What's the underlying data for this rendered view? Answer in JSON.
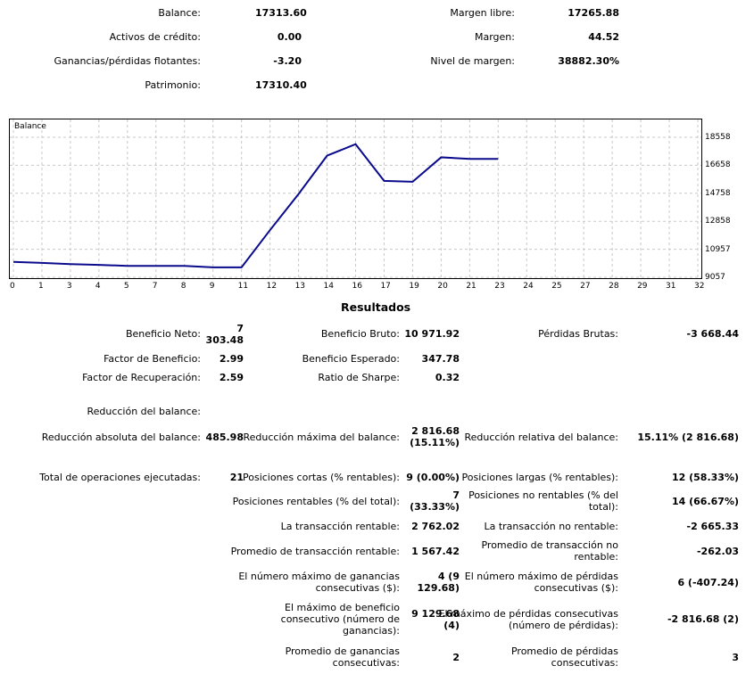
{
  "account": {
    "balance_label": "Balance:",
    "balance_value": "17313.60",
    "credit_label": "Activos de crédito:",
    "credit_value": "0.00",
    "floating_label": "Ganancias/pérdidas flotantes:",
    "floating_value": "-3.20",
    "equity_label": "Patrimonio:",
    "equity_value": "17310.40",
    "free_margin_label": "Margen libre:",
    "free_margin_value": "17265.88",
    "margin_label": "Margen:",
    "margin_value": "44.52",
    "margin_level_label": "Nivel de margen:",
    "margin_level_value": "38882.30%"
  },
  "chart_data": {
    "type": "line",
    "title": "Balance",
    "x_ticks": [
      "0",
      "1",
      "3",
      "4",
      "5",
      "7",
      "8",
      "9",
      "11",
      "12",
      "13",
      "14",
      "16",
      "17",
      "19",
      "20",
      "21",
      "23",
      "24",
      "25",
      "27",
      "28",
      "29",
      "31",
      "32"
    ],
    "y_ticks": [
      "18558",
      "16658",
      "14758",
      "12858",
      "10957",
      "9057"
    ],
    "ylim": [
      9057,
      18558
    ],
    "xlim": [
      0,
      24
    ],
    "series": [
      {
        "x": [
          0,
          1,
          2,
          3,
          4,
          5,
          6,
          7,
          8,
          9,
          10,
          11,
          12,
          13,
          14,
          15,
          16,
          17
        ],
        "y": [
          10100,
          10030,
          9950,
          9900,
          9830,
          9830,
          9830,
          9730,
          9730,
          12260,
          14710,
          17310,
          18090,
          15600,
          15540,
          17200,
          17090,
          17090
        ],
        "color": "#0a0a8c"
      }
    ],
    "grid": true
  },
  "results": {
    "title": "Resultados",
    "net_profit_label": "Beneficio Neto:",
    "net_profit_value_1": "7",
    "net_profit_value_2": "303.48",
    "gross_profit_label": "Beneficio Bruto:",
    "gross_profit_value": "10 971.92",
    "gross_loss_label": "Pérdidas Brutas:",
    "gross_loss_value": "-3 668.44",
    "profit_factor_label": "Factor de Beneficio:",
    "profit_factor_value": "2.99",
    "expected_payoff_label": "Beneficio Esperado:",
    "expected_payoff_value": "347.78",
    "recovery_factor_label": "Factor de Recuperación:",
    "recovery_factor_value": "2.59",
    "sharpe_label": "Ratio de Sharpe:",
    "sharpe_value": "0.32",
    "drawdown_label": "Reducción del balance:",
    "abs_drawdown_label": "Reducción absoluta del balance:",
    "abs_drawdown_value": "485.98",
    "max_drawdown_label": "Reducción máxima del balance:",
    "max_drawdown_value_1": "2 816.68",
    "max_drawdown_value_2": "(15.11%)",
    "rel_drawdown_label": "Reducción relativa del balance:",
    "rel_drawdown_value": "15.11% (2 816.68)",
    "total_trades_label": "Total de operaciones ejecutadas:",
    "total_trades_value": "21",
    "short_label": "Posiciones cortas (% rentables):",
    "short_value": "9 (0.00%)",
    "long_label": "Posiciones largas (% rentables):",
    "long_value": "12 (58.33%)",
    "profit_trades_label_1": "Posiciones rentables (% del total):",
    "profit_trades_value_1": "7",
    "profit_trades_value_2": "(33.33%)",
    "loss_trades_label_1": "Posiciones no rentables (% del",
    "loss_trades_label_2": "total):",
    "loss_trades_value": "14 (66.67%)",
    "largest_profit_label": "La transacción rentable:",
    "largest_profit_value": "2 762.02",
    "largest_loss_label": "La transacción no rentable:",
    "largest_loss_value": "-2 665.33",
    "avg_profit_label": "Promedio de transacción rentable:",
    "avg_profit_value": "1 567.42",
    "avg_loss_label_1": "Promedio de transacción no",
    "avg_loss_label_2": "rentable:",
    "avg_loss_value": "-262.03",
    "max_cons_wins_label_1": "El número máximo de ganancias",
    "max_cons_wins_label_2": "consecutivas ($):",
    "max_cons_wins_value_1": "4 (9",
    "max_cons_wins_value_2": "129.68)",
    "max_cons_losses_label_1": "El número máximo de pérdidas",
    "max_cons_losses_label_2": "consecutivas ($):",
    "max_cons_losses_value": "6 (-407.24)",
    "max_cons_profit_label_1": "El máximo de beneficio",
    "max_cons_profit_label_2": "consecutivo (número de",
    "max_cons_profit_label_3": "ganancias):",
    "max_cons_profit_value_1": "9 129.68",
    "max_cons_profit_value_2": "(4)",
    "max_cons_loss_label_1": "El máximo de pérdidas consecutivas",
    "max_cons_loss_label_2": "(número de pérdidas):",
    "max_cons_loss_value": "-2 816.68 (2)",
    "avg_cons_wins_label_1": "Promedio de ganancias",
    "avg_cons_wins_label_2": "consecutivas:",
    "avg_cons_wins_value": "2",
    "avg_cons_losses_label_1": "Promedio de pérdidas",
    "avg_cons_losses_label_2": "consecutivas:",
    "avg_cons_losses_value": "3"
  }
}
